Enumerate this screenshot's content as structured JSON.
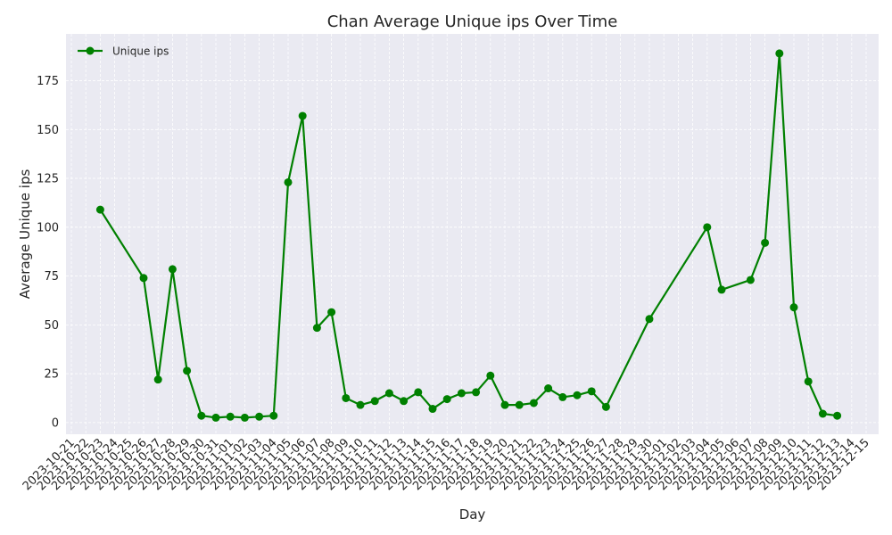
{
  "chart_data": {
    "type": "line",
    "title": "Chan Average Unique ips Over Time",
    "xlabel": "Day",
    "ylabel": "Average Unique ips",
    "x_ticks": [
      "2023-10-21",
      "2023-10-22",
      "2023-10-23",
      "2023-10-24",
      "2023-10-25",
      "2023-10-26",
      "2023-10-27",
      "2023-10-28",
      "2023-10-29",
      "2023-10-30",
      "2023-10-31",
      "2023-11-01",
      "2023-11-02",
      "2023-11-03",
      "2023-11-04",
      "2023-11-05",
      "2023-11-06",
      "2023-11-07",
      "2023-11-08",
      "2023-11-09",
      "2023-11-10",
      "2023-11-11",
      "2023-11-12",
      "2023-11-13",
      "2023-11-14",
      "2023-11-15",
      "2023-11-16",
      "2023-11-17",
      "2023-11-18",
      "2023-11-19",
      "2023-11-20",
      "2023-11-21",
      "2023-11-22",
      "2023-11-23",
      "2023-11-24",
      "2023-11-25",
      "2023-11-26",
      "2023-11-27",
      "2023-11-28",
      "2023-11-29",
      "2023-11-30",
      "2023-12-01",
      "2023-12-02",
      "2023-12-03",
      "2023-12-04",
      "2023-12-05",
      "2023-12-06",
      "2023-12-07",
      "2023-12-08",
      "2023-12-09",
      "2023-12-10",
      "2023-12-11",
      "2023-12-12",
      "2023-12-13",
      "2023-12-14",
      "2023-12-15"
    ],
    "y_ticks": [
      0,
      25,
      50,
      75,
      100,
      125,
      150,
      175
    ],
    "ylim": [
      -6,
      199
    ],
    "grid": true,
    "legend_position": "top-left",
    "series": [
      {
        "name": "Unique ips",
        "color": "#008000",
        "points": [
          {
            "x": "2023-10-23",
            "y": 109
          },
          {
            "x": "2023-10-26",
            "y": 74
          },
          {
            "x": "2023-10-27",
            "y": 22
          },
          {
            "x": "2023-10-28",
            "y": 78.5
          },
          {
            "x": "2023-10-29",
            "y": 26.5
          },
          {
            "x": "2023-10-30",
            "y": 3.5
          },
          {
            "x": "2023-10-31",
            "y": 2.5
          },
          {
            "x": "2023-11-01",
            "y": 3
          },
          {
            "x": "2023-11-02",
            "y": 2.5
          },
          {
            "x": "2023-11-03",
            "y": 3
          },
          {
            "x": "2023-11-04",
            "y": 3.5
          },
          {
            "x": "2023-11-05",
            "y": 123
          },
          {
            "x": "2023-11-06",
            "y": 157
          },
          {
            "x": "2023-11-07",
            "y": 48.5
          },
          {
            "x": "2023-11-08",
            "y": 56.5
          },
          {
            "x": "2023-11-09",
            "y": 12.5
          },
          {
            "x": "2023-11-10",
            "y": 9
          },
          {
            "x": "2023-11-11",
            "y": 11
          },
          {
            "x": "2023-11-12",
            "y": 15
          },
          {
            "x": "2023-11-13",
            "y": 11
          },
          {
            "x": "2023-11-14",
            "y": 15.5
          },
          {
            "x": "2023-11-15",
            "y": 7
          },
          {
            "x": "2023-11-16",
            "y": 12
          },
          {
            "x": "2023-11-17",
            "y": 15
          },
          {
            "x": "2023-11-18",
            "y": 15.5
          },
          {
            "x": "2023-11-19",
            "y": 24
          },
          {
            "x": "2023-11-20",
            "y": 9
          },
          {
            "x": "2023-11-21",
            "y": 9
          },
          {
            "x": "2023-11-22",
            "y": 10
          },
          {
            "x": "2023-11-23",
            "y": 17.5
          },
          {
            "x": "2023-11-24",
            "y": 13
          },
          {
            "x": "2023-11-25",
            "y": 14
          },
          {
            "x": "2023-11-26",
            "y": 16
          },
          {
            "x": "2023-11-27",
            "y": 8
          },
          {
            "x": "2023-11-30",
            "y": 53
          },
          {
            "x": "2023-12-04",
            "y": 100
          },
          {
            "x": "2023-12-05",
            "y": 68
          },
          {
            "x": "2023-12-07",
            "y": 73
          },
          {
            "x": "2023-12-08",
            "y": 92
          },
          {
            "x": "2023-12-09",
            "y": 189
          },
          {
            "x": "2023-12-10",
            "y": 59
          },
          {
            "x": "2023-12-11",
            "y": 21
          },
          {
            "x": "2023-12-12",
            "y": 4.5
          },
          {
            "x": "2023-12-13",
            "y": 3.5
          }
        ]
      }
    ]
  },
  "colors": {
    "plot_background": "#EAEAF2",
    "grid": "#FFFFFF",
    "line": "#008000",
    "text": "#262626"
  }
}
